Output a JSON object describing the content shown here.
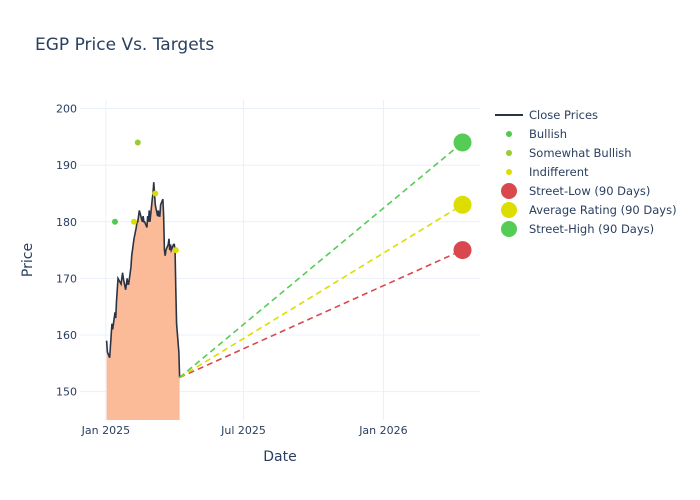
{
  "chart_data": {
    "type": "line",
    "title": "EGP Price Vs. Targets",
    "xlabel": "Date",
    "ylabel": "Price",
    "x_tick_labels": [
      "Jan 2025",
      "Jul 2025",
      "Jan 2026"
    ],
    "x_tick_dates": [
      "2025-01-01",
      "2025-07-01",
      "2026-01-01"
    ],
    "y_ticks": [
      150,
      160,
      170,
      180,
      190,
      200
    ],
    "xlim": [
      "2024-11-28",
      "2026-05-08"
    ],
    "ylim": [
      145,
      201.5
    ],
    "grid": true,
    "legend_position": "right",
    "colors": {
      "close": "#2b3445",
      "fill": "#fbbb98",
      "bullish": "#4fc94f",
      "somewhat_bullish": "#99cc33",
      "indifferent": "#dddd00",
      "street_low": "#d9484d",
      "average": "#dddd00",
      "street_high": "#55cc55"
    },
    "legend": [
      {
        "label": "Close Prices",
        "kind": "line",
        "color": "#2b3445"
      },
      {
        "label": "Bullish",
        "kind": "dot",
        "color": "#4fc94f"
      },
      {
        "label": "Somewhat Bullish",
        "kind": "dot",
        "color": "#99cc33"
      },
      {
        "label": "Indifferent",
        "kind": "dot",
        "color": "#dddd00"
      },
      {
        "label": "Street-Low (90 Days)",
        "kind": "big",
        "color": "#d9484d"
      },
      {
        "label": "Average Rating (90 Days)",
        "kind": "big",
        "color": "#dddd00"
      },
      {
        "label": "Street-High (90 Days)",
        "kind": "big",
        "color": "#55cc55"
      }
    ],
    "close_prices": {
      "x": [
        "2025-01-02",
        "2025-01-03",
        "2025-01-06",
        "2025-01-07",
        "2025-01-08",
        "2025-01-09",
        "2025-01-10",
        "2025-01-13",
        "2025-01-14",
        "2025-01-15",
        "2025-01-16",
        "2025-01-17",
        "2025-01-21",
        "2025-01-22",
        "2025-01-23",
        "2025-01-24",
        "2025-01-27",
        "2025-01-28",
        "2025-01-29",
        "2025-01-30",
        "2025-01-31",
        "2025-02-03",
        "2025-02-04",
        "2025-02-05",
        "2025-02-06",
        "2025-02-07",
        "2025-02-10",
        "2025-02-11",
        "2025-02-12",
        "2025-02-13",
        "2025-02-14",
        "2025-02-18",
        "2025-02-19",
        "2025-02-20",
        "2025-02-21",
        "2025-02-24",
        "2025-02-25",
        "2025-02-26",
        "2025-02-27",
        "2025-02-28",
        "2025-03-03",
        "2025-03-04",
        "2025-03-05",
        "2025-03-06",
        "2025-03-07",
        "2025-03-10",
        "2025-03-11",
        "2025-03-12",
        "2025-03-13",
        "2025-03-14",
        "2025-03-17",
        "2025-03-18",
        "2025-03-19",
        "2025-03-20",
        "2025-03-21",
        "2025-03-24",
        "2025-03-25",
        "2025-03-26",
        "2025-03-27",
        "2025-03-28",
        "2025-03-31",
        "2025-04-01",
        "2025-04-02",
        "2025-04-03",
        "2025-04-04",
        "2025-04-07",
        "2025-04-08"
      ],
      "y": [
        159,
        157,
        156,
        158,
        160,
        162,
        161,
        164,
        163,
        166,
        168,
        170,
        169,
        170,
        171,
        170,
        168,
        169,
        170,
        169,
        169,
        172,
        174,
        175,
        176,
        177,
        179,
        180,
        180,
        181,
        182,
        180,
        181,
        180,
        180,
        179,
        181,
        180,
        182,
        180,
        184,
        185,
        187,
        185,
        183,
        181,
        182,
        181,
        181,
        183,
        184,
        181,
        175,
        174,
        175,
        176,
        177,
        175,
        176,
        175,
        176,
        176,
        175,
        168,
        162,
        157,
        152.5
      ]
    },
    "bullish": [
      {
        "date": "2025-01-13",
        "price": 180
      }
    ],
    "somewhat_bullish": [
      {
        "date": "2025-02-12",
        "price": 194
      }
    ],
    "indifferent": [
      {
        "date": "2025-02-07",
        "price": 180
      },
      {
        "date": "2025-03-07",
        "price": 185
      },
      {
        "date": "2025-04-03",
        "price": 175
      }
    ],
    "targets": {
      "start": {
        "date": "2025-04-08",
        "price": 152.5
      },
      "target_date": "2026-04-15",
      "street_low": 175,
      "average": 183,
      "street_high": 194
    }
  }
}
